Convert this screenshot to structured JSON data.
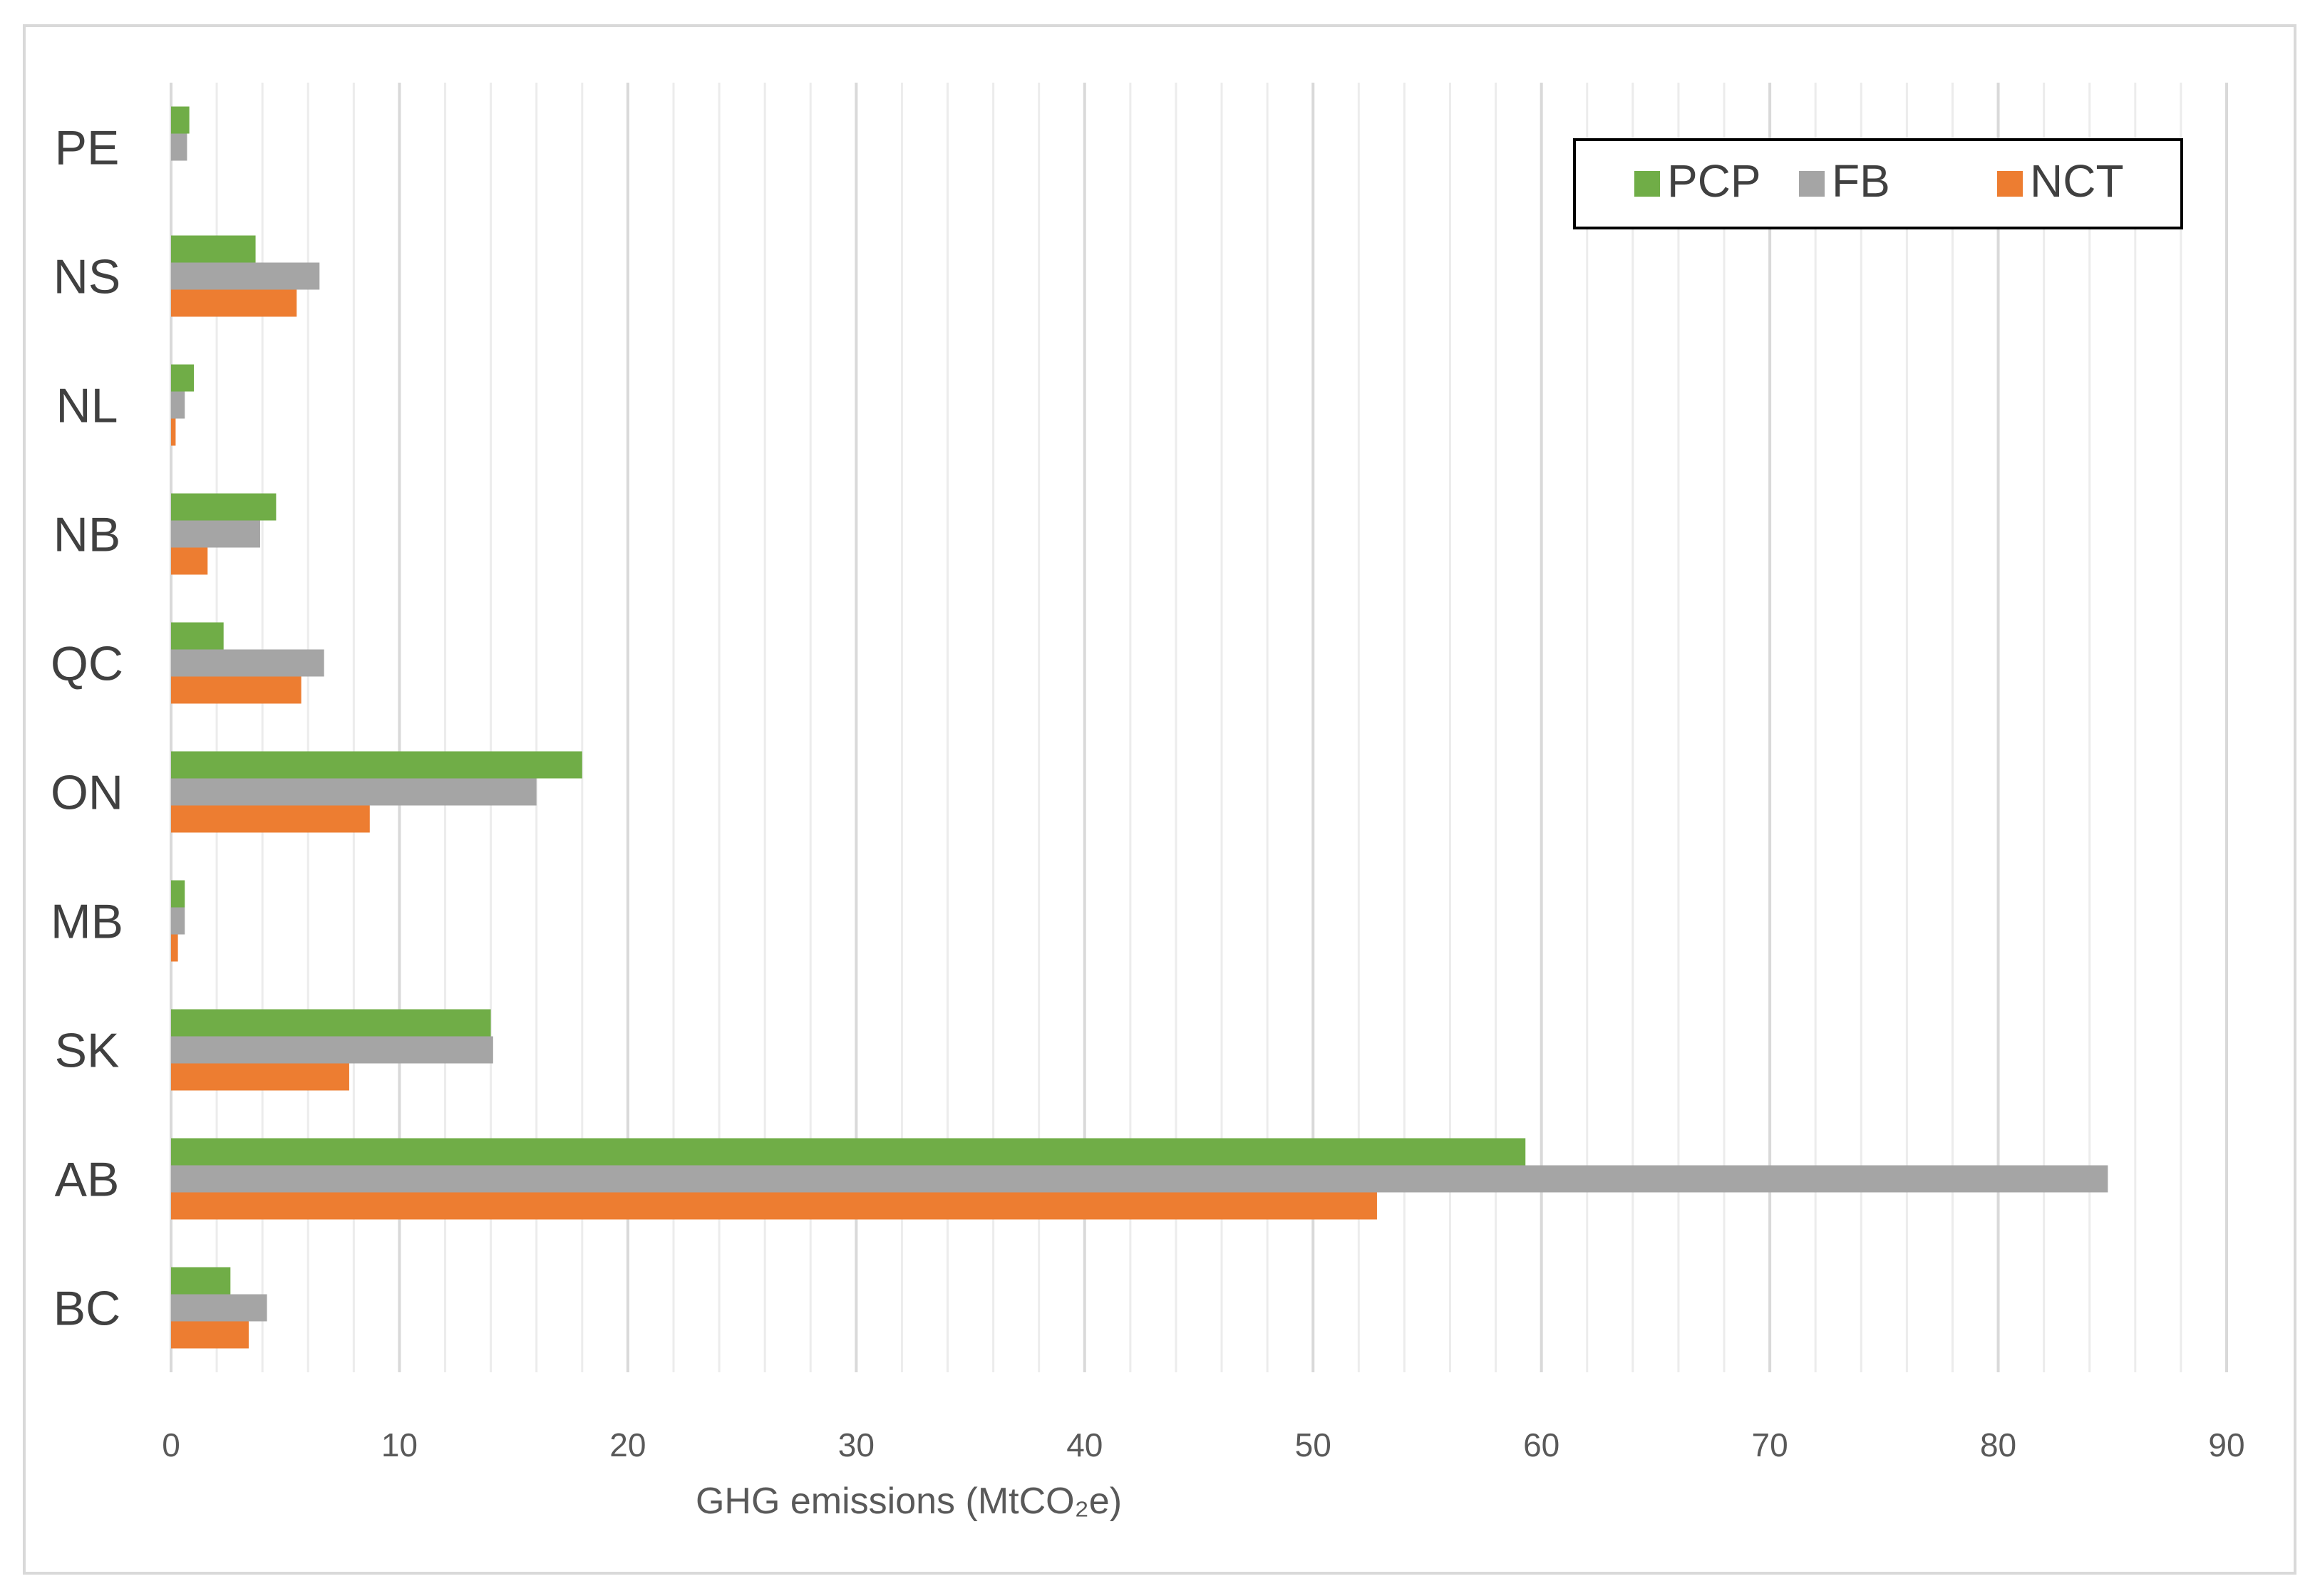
{
  "chart_data": {
    "type": "bar",
    "orientation": "horizontal",
    "categories": [
      "BC",
      "AB",
      "SK",
      "MB",
      "ON",
      "QC",
      "NB",
      "NL",
      "NS",
      "PE"
    ],
    "series": [
      {
        "name": "PCP",
        "color": "#70ad47",
        "values": [
          2.6,
          59.3,
          14.0,
          0.6,
          18.0,
          2.3,
          4.6,
          1.0,
          3.7,
          0.8
        ]
      },
      {
        "name": "FB",
        "color": "#a5a5a5",
        "values": [
          4.2,
          84.8,
          14.1,
          0.6,
          16.0,
          6.7,
          3.9,
          0.6,
          6.5,
          0.7
        ]
      },
      {
        "name": "NCT",
        "color": "#ed7d31",
        "values": [
          3.4,
          52.8,
          7.8,
          0.3,
          8.7,
          5.7,
          1.6,
          0.2,
          5.5,
          0.0
        ]
      }
    ],
    "xlabel": "GHG emissions (MtCO₂e)",
    "xlim": [
      0,
      90
    ],
    "xticks": [
      0,
      10,
      20,
      30,
      40,
      50,
      60,
      70,
      80,
      90
    ],
    "minor_gridlines_every": 2,
    "grid": true,
    "legend_position": "top-right",
    "category_order": "bottom-to-top"
  }
}
